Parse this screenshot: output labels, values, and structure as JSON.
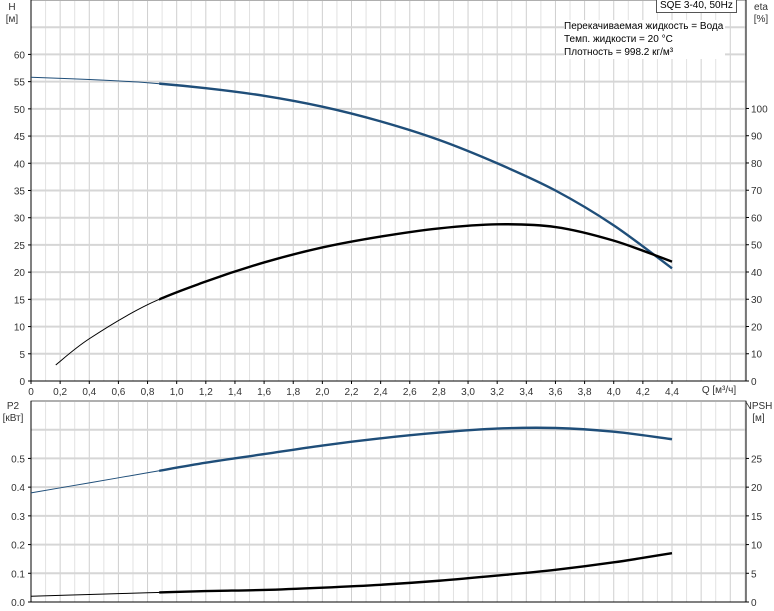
{
  "chart_data": [
    {
      "type": "line",
      "title": "SQE 3-40, 50Hz",
      "info": [
        "Перекачиваемая жидкость = Вода",
        "Темп. жидкости = 20 °C",
        "Плотность = 998.2 кг/м³"
      ],
      "xlabel": "Q [м³/ч]",
      "xlim": [
        0,
        4.9
      ],
      "xticks": [
        "0",
        "0,2",
        "0,4",
        "0,6",
        "0,8",
        "1,0",
        "1,2",
        "1,4",
        "1,6",
        "1,8",
        "2,0",
        "2,2",
        "2,4",
        "2,6",
        "2,8",
        "3,0",
        "3,2",
        "3,4",
        "3,6",
        "3,8",
        "4,0",
        "4,2",
        "4,4"
      ],
      "ylabel_left": [
        "H",
        "[м]"
      ],
      "ylim_left": [
        0,
        70
      ],
      "yticks_left": [
        0,
        5,
        10,
        15,
        20,
        25,
        30,
        35,
        40,
        45,
        50,
        55,
        60
      ],
      "ylabel_right": [
        "eta",
        "[%]"
      ],
      "ylim_right": [
        0,
        139.8
      ],
      "yticks_right": [
        0,
        10,
        20,
        30,
        40,
        50,
        60,
        70,
        80,
        90,
        100
      ],
      "grid": true,
      "series": [
        {
          "axis": "left",
          "color": "#1f4e79",
          "x": [
            0,
            0.4,
            0.8,
            1.2,
            1.6,
            2.0,
            2.4,
            2.8,
            3.2,
            3.6,
            4.0,
            4.4
          ],
          "y": [
            55.8,
            55.4,
            54.8,
            53.8,
            52.4,
            50.4,
            47.7,
            44.3,
            40.0,
            35.0,
            28.6,
            20.7
          ]
        },
        {
          "axis": "right",
          "color": "#000000",
          "x": [
            0.17,
            0.4,
            0.8,
            1.2,
            1.6,
            2.0,
            2.4,
            2.8,
            3.2,
            3.6,
            4.0,
            4.4
          ],
          "y": [
            5.9,
            15.5,
            28,
            36.5,
            43.5,
            49,
            53,
            56,
            57.5,
            56.5,
            51.5,
            43.8
          ]
        }
      ]
    },
    {
      "type": "line",
      "ylabel_left": [
        "P2",
        "[кВт]"
      ],
      "ylim_left": [
        0,
        0.7
      ],
      "yticks_left": [
        "0.0",
        "0.1",
        "0.2",
        "0.3",
        "0.4",
        "0.5"
      ],
      "ylabel_right": [
        "NPSH",
        "[м]"
      ],
      "ylim_right": [
        0,
        35
      ],
      "yticks_right": [
        0,
        5,
        10,
        15,
        20,
        25
      ],
      "xlim": [
        0,
        4.9
      ],
      "grid": true,
      "series": [
        {
          "axis": "left",
          "color": "#1f4e79",
          "x": [
            0,
            0.4,
            0.8,
            1.2,
            1.6,
            2.0,
            2.4,
            2.8,
            3.2,
            3.6,
            4.0,
            4.4
          ],
          "y": [
            0.38,
            0.415,
            0.45,
            0.485,
            0.515,
            0.545,
            0.57,
            0.59,
            0.604,
            0.606,
            0.593,
            0.567
          ]
        },
        {
          "axis": "right",
          "color": "#000000",
          "x": [
            0,
            0.4,
            0.8,
            1.2,
            1.6,
            2.0,
            2.4,
            2.8,
            3.2,
            3.6,
            4.0,
            4.4
          ],
          "y": [
            1.0,
            1.3,
            1.6,
            1.9,
            2.1,
            2.5,
            3.0,
            3.7,
            4.6,
            5.6,
            6.9,
            8.5
          ]
        }
      ]
    }
  ]
}
